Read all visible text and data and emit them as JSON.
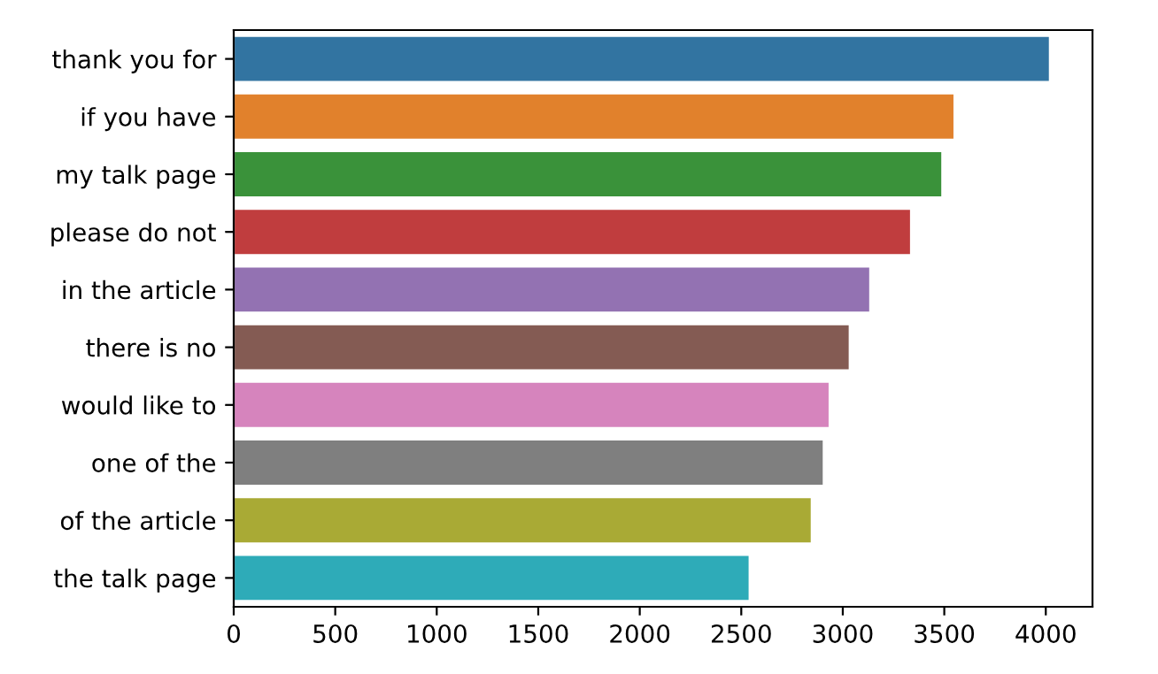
{
  "chart_data": {
    "type": "bar",
    "orientation": "horizontal",
    "categories": [
      "thank you for",
      "if you have",
      "my talk page",
      "please do not",
      "in the article",
      "there is no",
      "would like to",
      "one of the",
      "of the article",
      "the talk page"
    ],
    "values": [
      4020,
      3550,
      3490,
      3336,
      3135,
      3034,
      2935,
      2906,
      2847,
      2541
    ],
    "colors": [
      "#3274a1",
      "#e1812c",
      "#3a923a",
      "#c03d3e",
      "#9372b2",
      "#845b53",
      "#d684bd",
      "#7f7f7f",
      "#a9aa35",
      "#2eabb8"
    ],
    "xlim": [
      0,
      4230
    ],
    "xticks": [
      0,
      500,
      1000,
      1500,
      2000,
      2500,
      3000,
      3500,
      4000
    ],
    "grid": false,
    "legend": false
  }
}
